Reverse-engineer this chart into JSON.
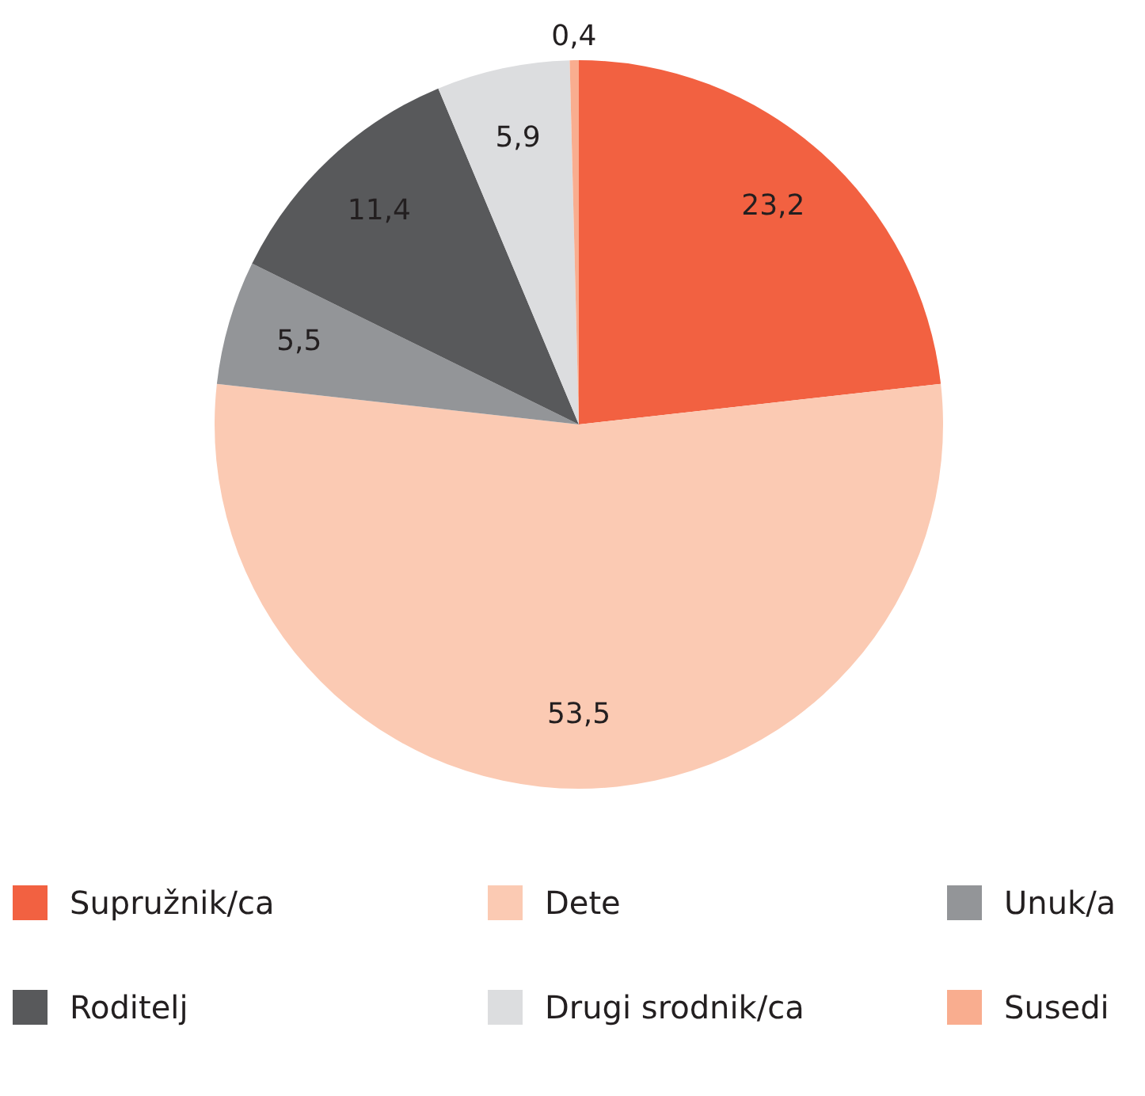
{
  "chart_data": {
    "type": "pie",
    "categories": [
      "Supružnik/ca",
      "Dete",
      "Unuk/a",
      "Roditelj",
      "Drugi srodnik/ca",
      "Susedi"
    ],
    "values": [
      23.2,
      53.5,
      5.5,
      11.4,
      5.9,
      0.4
    ],
    "colors": [
      "#f26141",
      "#fbcab3",
      "#939598",
      "#58595b",
      "#dcdddf",
      "#f9ad8f"
    ],
    "value_labels": [
      "23,2",
      "53,5",
      "5,5",
      "11,4",
      "5,9",
      "0,4"
    ],
    "legend": "bottom"
  }
}
